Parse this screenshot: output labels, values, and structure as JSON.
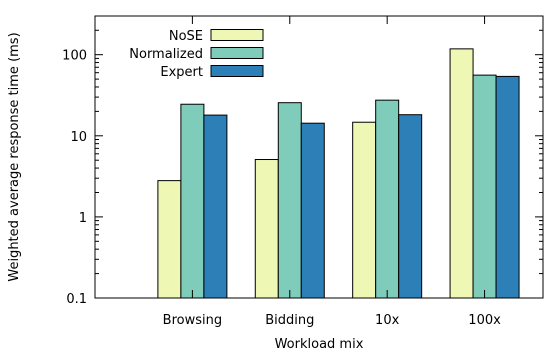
{
  "chart_data": {
    "type": "bar",
    "title": "",
    "xlabel": "Workload mix",
    "ylabel": "Weighted average response time (ms)",
    "yscale": "log",
    "ylim": [
      0.1,
      300
    ],
    "yticks": [
      {
        "value": 0.1,
        "label": "0.1"
      },
      {
        "value": 1,
        "label": "1"
      },
      {
        "value": 10,
        "label": "10"
      },
      {
        "value": 100,
        "label": "100"
      }
    ],
    "categories": [
      "Browsing",
      "Bidding",
      "10x",
      "100x"
    ],
    "series": [
      {
        "name": "NoSE",
        "color": "#eef7b4",
        "values": [
          2.8,
          5.1,
          14.7,
          118
        ]
      },
      {
        "name": "Normalized",
        "color": "#7fccbb",
        "values": [
          24.5,
          25.6,
          27.5,
          56
        ]
      },
      {
        "name": "Expert",
        "color": "#2d7fb8",
        "values": [
          18.0,
          14.3,
          18.2,
          54
        ]
      }
    ],
    "grid": false,
    "legend": "top-left"
  }
}
